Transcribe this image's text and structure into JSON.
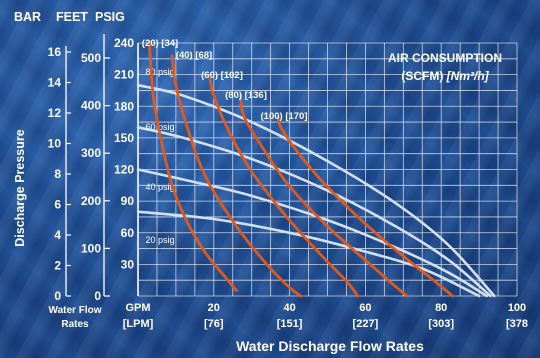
{
  "chart_data": {
    "type": "line",
    "title": "AIR CONSUMPTION",
    "subtitle_prefix": "(SCFM) ",
    "subtitle_units": "[Nm³/h]",
    "xlabel": "Water Discharge Flow Rates",
    "x_unit_label": "GPM",
    "x_unit_label_metric": "[LPM]",
    "ylabel": "Discharge Pressure",
    "left_axis_label": "Water Flow Rates",
    "axis_unit_headers": {
      "bar": "BAR",
      "feet": "FEET",
      "psig": "PSIG"
    },
    "xlim": [
      0,
      100
    ],
    "ylim": [
      0,
      240
    ],
    "grid": true,
    "x_ticks": [
      {
        "value": 20,
        "label": "20",
        "metric": "[76]"
      },
      {
        "value": 40,
        "label": "40",
        "metric": "[151]"
      },
      {
        "value": 60,
        "label": "60",
        "metric": "[227]"
      },
      {
        "value": 80,
        "label": "80",
        "metric": "[303]"
      },
      {
        "value": 100,
        "label": "100",
        "metric": "[378"
      }
    ],
    "psig_ticks": [
      "240",
      "210",
      "180",
      "150",
      "120",
      "90",
      "60",
      "30"
    ],
    "feet_ticks": [
      "500",
      "400",
      "300",
      "200",
      "100",
      "0"
    ],
    "bar_ticks": [
      "16",
      "14",
      "12",
      "10",
      "8",
      "6",
      "4",
      "2",
      "0"
    ],
    "pressure_series": [
      {
        "name": "80 psig",
        "points": [
          [
            0,
            200
          ],
          [
            12,
            190
          ],
          [
            30,
            165
          ],
          [
            50,
            128
          ],
          [
            68,
            88
          ],
          [
            82,
            48
          ],
          [
            94,
            0
          ]
        ]
      },
      {
        "name": "60 psig",
        "points": [
          [
            0,
            160
          ],
          [
            12,
            150
          ],
          [
            30,
            130
          ],
          [
            50,
            100
          ],
          [
            68,
            66
          ],
          [
            82,
            34
          ],
          [
            93,
            0
          ]
        ]
      },
      {
        "name": "40 psig",
        "points": [
          [
            0,
            120
          ],
          [
            15,
            108
          ],
          [
            30,
            95
          ],
          [
            50,
            72
          ],
          [
            68,
            46
          ],
          [
            82,
            22
          ],
          [
            92,
            0
          ]
        ]
      },
      {
        "name": "20 psig",
        "points": [
          [
            0,
            80
          ],
          [
            20,
            73
          ],
          [
            40,
            60
          ],
          [
            58,
            44
          ],
          [
            75,
            26
          ],
          [
            90,
            0
          ]
        ]
      }
    ],
    "air_curves": [
      {
        "name": "(20) [34]",
        "points": [
          [
            3,
            240
          ],
          [
            4,
            190
          ],
          [
            6,
            150
          ],
          [
            9,
            105
          ],
          [
            13,
            70
          ],
          [
            18,
            40
          ],
          [
            23,
            18
          ],
          [
            26,
            5
          ]
        ]
      },
      {
        "name": "(40) [68]",
        "points": [
          [
            9,
            228
          ],
          [
            10,
            200
          ],
          [
            13,
            160
          ],
          [
            18,
            112
          ],
          [
            26,
            66
          ],
          [
            34,
            30
          ],
          [
            40,
            8
          ],
          [
            43,
            0
          ]
        ]
      },
      {
        "name": "(60) [102]",
        "points": [
          [
            19,
            206
          ],
          [
            20,
            190
          ],
          [
            24,
            156
          ],
          [
            30,
            118
          ],
          [
            39,
            76
          ],
          [
            48,
            40
          ],
          [
            55,
            14
          ],
          [
            58,
            0
          ]
        ]
      },
      {
        "name": "(80) [136]",
        "points": [
          [
            27,
            190
          ],
          [
            28,
            170
          ],
          [
            33,
            140
          ],
          [
            40,
            104
          ],
          [
            50,
            66
          ],
          [
            60,
            34
          ],
          [
            67,
            12
          ],
          [
            71,
            0
          ]
        ]
      },
      {
        "name": "(100) [170]",
        "points": [
          [
            37,
            170
          ],
          [
            38,
            158
          ],
          [
            44,
            128
          ],
          [
            52,
            96
          ],
          [
            62,
            62
          ],
          [
            72,
            32
          ],
          [
            79,
            12
          ],
          [
            83,
            0
          ]
        ]
      }
    ]
  }
}
